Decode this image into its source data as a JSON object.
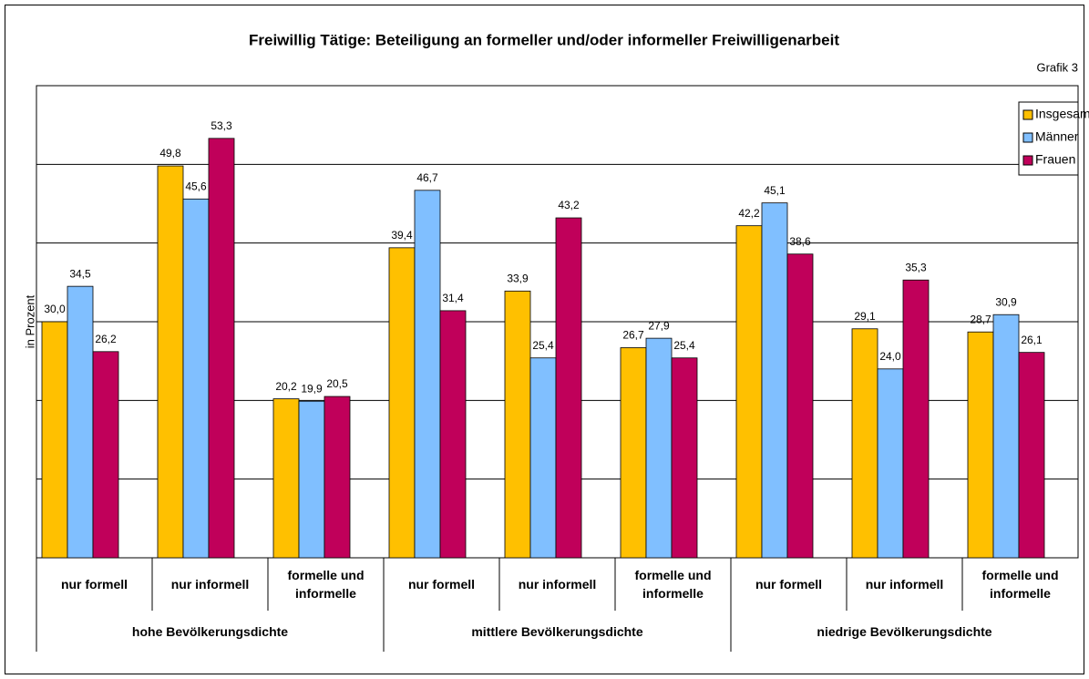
{
  "chart_data": {
    "type": "bar",
    "title": "Freiwillig Tätige: Beteiligung an formeller und/oder informeller Freiwilligenarbeit",
    "subtitle": "Grafik 3",
    "y_label": "in Prozent",
    "categories": [
      "nur formell",
      "nur informell",
      "formelle und informelle",
      "nur formell",
      "nur informell",
      "formelle und informelle",
      "nur formell",
      "nur informell",
      "formelle und informelle"
    ],
    "groups": [
      {
        "name": "hohe Bevölkerungsdichte",
        "size": 3
      },
      {
        "name": "mittlere Bevölkerungsdichte",
        "size": 3
      },
      {
        "name": "niedrige Bevölkerungsdichte",
        "size": 3
      }
    ],
    "series": [
      {
        "name": "Insgesamt",
        "color": "#ffc000",
        "values": [
          30.0,
          49.8,
          20.2,
          39.4,
          33.9,
          26.7,
          42.2,
          29.1,
          28.7
        ],
        "value_labels": [
          "30,0",
          "49,8",
          "20,2",
          "39,4",
          "33,9",
          "26,7",
          "42,2",
          "29,1",
          "28,7"
        ]
      },
      {
        "name": "Männer",
        "color": "#80bfff",
        "values": [
          34.5,
          45.6,
          19.9,
          46.7,
          25.4,
          27.9,
          45.1,
          24.0,
          30.9
        ],
        "value_labels": [
          "34,5",
          "45,6",
          "19,9",
          "46,7",
          "25,4",
          "27,9",
          "45,1",
          "24,0",
          "30,9"
        ]
      },
      {
        "name": "Frauen",
        "color": "#c0005a",
        "values": [
          26.2,
          53.3,
          20.5,
          31.4,
          43.2,
          25.4,
          38.6,
          35.3,
          26.1
        ],
        "value_labels": [
          "26,2",
          "53,3",
          "20,5",
          "31,4",
          "43,2",
          "25,4",
          "38,6",
          "35,3",
          "26,1"
        ]
      }
    ],
    "ylim": [
      0,
      60
    ],
    "yticks": [
      0,
      10,
      20,
      30,
      40,
      50,
      60
    ],
    "grid": true,
    "legend": "top-right"
  }
}
